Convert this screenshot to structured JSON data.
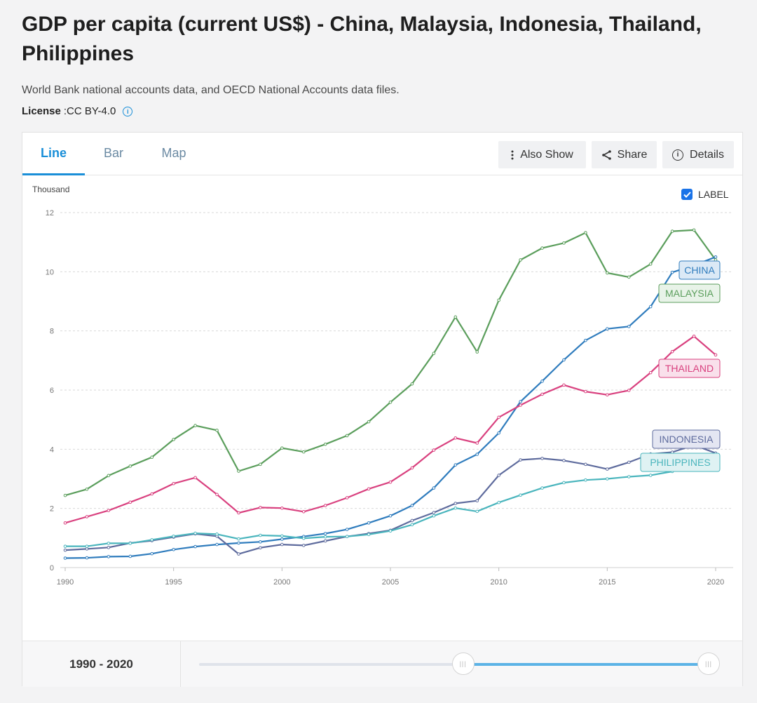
{
  "title": "GDP per capita (current US$) - China, Malaysia, Indonesia, Thailand, Philippines",
  "source": "World Bank national accounts data, and OECD National Accounts data files.",
  "license": {
    "label": "License",
    "separator": " : ",
    "value": "CC BY-4.0"
  },
  "tabs": {
    "line": "Line",
    "bar": "Bar",
    "map": "Map",
    "active": "line"
  },
  "toolbar": {
    "also_show": "Also Show",
    "share": "Share",
    "details": "Details"
  },
  "label_toggle": {
    "text": "LABEL",
    "checked": true
  },
  "range": {
    "label": "1990 - 2020",
    "start_fraction": 0.518,
    "end_fraction": 1.0
  },
  "icons": {
    "also_show": "more-vertical-icon",
    "share": "share-icon",
    "details": "info-icon",
    "license": "info-icon"
  },
  "chart_data": {
    "type": "line",
    "ylabel": "Thousand",
    "ylim": [
      0,
      12
    ],
    "yticks": [
      0,
      2,
      4,
      6,
      8,
      10,
      12
    ],
    "xlim": [
      1990,
      2020
    ],
    "xticks": [
      1990,
      1995,
      2000,
      2005,
      2010,
      2015,
      2020
    ],
    "grid": true,
    "x": [
      1990,
      1991,
      1992,
      1993,
      1994,
      1995,
      1996,
      1997,
      1998,
      1999,
      2000,
      2001,
      2002,
      2003,
      2004,
      2005,
      2006,
      2007,
      2008,
      2009,
      2010,
      2011,
      2012,
      2013,
      2014,
      2015,
      2016,
      2017,
      2018,
      2019,
      2020
    ],
    "series": [
      {
        "name": "MALAYSIA",
        "color": "#5b9e5c",
        "label_bg": "#e8f3e8",
        "values": [
          2.44,
          2.65,
          3.11,
          3.43,
          3.73,
          4.33,
          4.8,
          4.64,
          3.26,
          3.49,
          4.04,
          3.91,
          4.17,
          4.46,
          4.93,
          5.59,
          6.21,
          7.24,
          8.47,
          7.29,
          9.04,
          10.4,
          10.8,
          10.97,
          11.32,
          9.96,
          9.82,
          10.26,
          11.37,
          11.41,
          10.4
        ]
      },
      {
        "name": "CHINA",
        "color": "#2f7cbd",
        "label_bg": "#dbe9f6",
        "values": [
          0.32,
          0.33,
          0.37,
          0.38,
          0.47,
          0.61,
          0.71,
          0.78,
          0.83,
          0.87,
          0.96,
          1.05,
          1.15,
          1.29,
          1.51,
          1.75,
          2.1,
          2.69,
          3.47,
          3.83,
          4.55,
          5.61,
          6.3,
          7.02,
          7.68,
          8.07,
          8.15,
          8.82,
          9.98,
          10.22,
          10.5
        ]
      },
      {
        "name": "THAILAND",
        "color": "#d9417f",
        "label_bg": "#f9e0eb",
        "values": [
          1.51,
          1.72,
          1.93,
          2.21,
          2.49,
          2.84,
          3.04,
          2.47,
          1.85,
          2.03,
          2.01,
          1.89,
          2.1,
          2.36,
          2.66,
          2.89,
          3.37,
          3.97,
          4.38,
          4.21,
          5.08,
          5.49,
          5.86,
          6.17,
          5.95,
          5.84,
          5.99,
          6.59,
          7.3,
          7.82,
          7.19
        ]
      },
      {
        "name": "INDONESIA",
        "color": "#5e6b9d",
        "label_bg": "#e4e6f2",
        "values": [
          0.59,
          0.63,
          0.68,
          0.83,
          0.91,
          1.03,
          1.14,
          1.06,
          0.46,
          0.67,
          0.78,
          0.75,
          0.9,
          1.05,
          1.15,
          1.26,
          1.59,
          1.86,
          2.17,
          2.26,
          3.12,
          3.64,
          3.69,
          3.62,
          3.49,
          3.33,
          3.56,
          3.84,
          3.9,
          4.14,
          3.87
        ]
      },
      {
        "name": "PHILIPPINES",
        "color": "#4ab5bd",
        "label_bg": "#dff2f3",
        "values": [
          0.72,
          0.72,
          0.82,
          0.82,
          0.94,
          1.06,
          1.16,
          1.13,
          0.97,
          1.09,
          1.07,
          0.99,
          1.04,
          1.05,
          1.12,
          1.24,
          1.45,
          1.75,
          2.01,
          1.9,
          2.2,
          2.45,
          2.69,
          2.87,
          2.96,
          3.0,
          3.07,
          3.12,
          3.25,
          3.49,
          3.3
        ]
      }
    ]
  }
}
